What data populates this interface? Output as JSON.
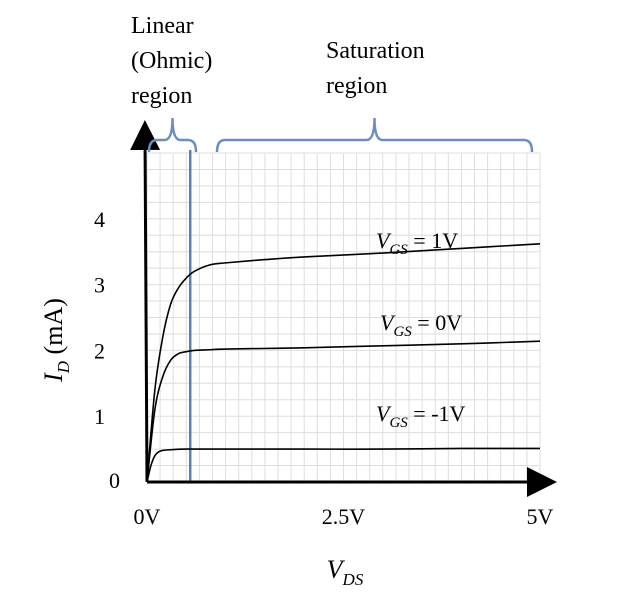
{
  "chart_data": {
    "type": "line",
    "title": "",
    "xlabel": {
      "main": "V",
      "sub": "DS"
    },
    "ylabel": {
      "main": "I",
      "sub": "D",
      "rest": " (mA)"
    },
    "xlim": [
      0,
      5
    ],
    "ylim": [
      0,
      5
    ],
    "x_ticks": [
      {
        "value": 0,
        "label": "0V"
      },
      {
        "value": 2.5,
        "label": "2.5V"
      },
      {
        "value": 5,
        "label": "5V"
      }
    ],
    "y_ticks": [
      {
        "value": 0,
        "label": "0"
      },
      {
        "value": 1,
        "label": "1"
      },
      {
        "value": 2,
        "label": "2"
      },
      {
        "value": 3,
        "label": "3"
      },
      {
        "value": 4,
        "label": "4"
      }
    ],
    "grid": true,
    "boundary_x": 0.55,
    "regions": [
      {
        "lines": [
          "Linear",
          "(Ohmic)",
          "region"
        ],
        "x_range": [
          0,
          0.55
        ]
      },
      {
        "lines": [
          "Saturation",
          "region"
        ],
        "x_range": [
          0.75,
          5
        ]
      }
    ],
    "series": [
      {
        "label_main": "V",
        "label_sub": "GS",
        "label_rest": " = 1V",
        "x": [
          0,
          0.1,
          0.2,
          0.3,
          0.4,
          0.5,
          0.6,
          0.8,
          1.0,
          1.5,
          2.0,
          3.0,
          4.0,
          5.0
        ],
        "y": [
          0,
          1.4,
          2.2,
          2.7,
          2.95,
          3.1,
          3.2,
          3.3,
          3.33,
          3.38,
          3.42,
          3.48,
          3.55,
          3.62
        ]
      },
      {
        "label_main": "V",
        "label_sub": "GS",
        "label_rest": " = 0V",
        "x": [
          0,
          0.1,
          0.2,
          0.3,
          0.4,
          0.5,
          0.6,
          0.8,
          1.0,
          2.0,
          3.0,
          4.0,
          5.0
        ],
        "y": [
          0,
          1.1,
          1.6,
          1.85,
          1.95,
          1.98,
          2.0,
          2.01,
          2.02,
          2.04,
          2.07,
          2.1,
          2.14
        ]
      },
      {
        "label_main": "V",
        "label_sub": "GS",
        "label_rest": " = -1V",
        "x": [
          0,
          0.05,
          0.1,
          0.15,
          0.2,
          0.3,
          0.5,
          1.0,
          2.0,
          3.0,
          4.0,
          5.0
        ],
        "y": [
          0,
          0.25,
          0.4,
          0.46,
          0.48,
          0.49,
          0.5,
          0.5,
          0.5,
          0.5,
          0.51,
          0.51
        ]
      }
    ],
    "colors": {
      "curve": "#000000",
      "bracket": "#6c8ebf",
      "boundary": "#5b80b8",
      "grid": "#dedede"
    }
  }
}
